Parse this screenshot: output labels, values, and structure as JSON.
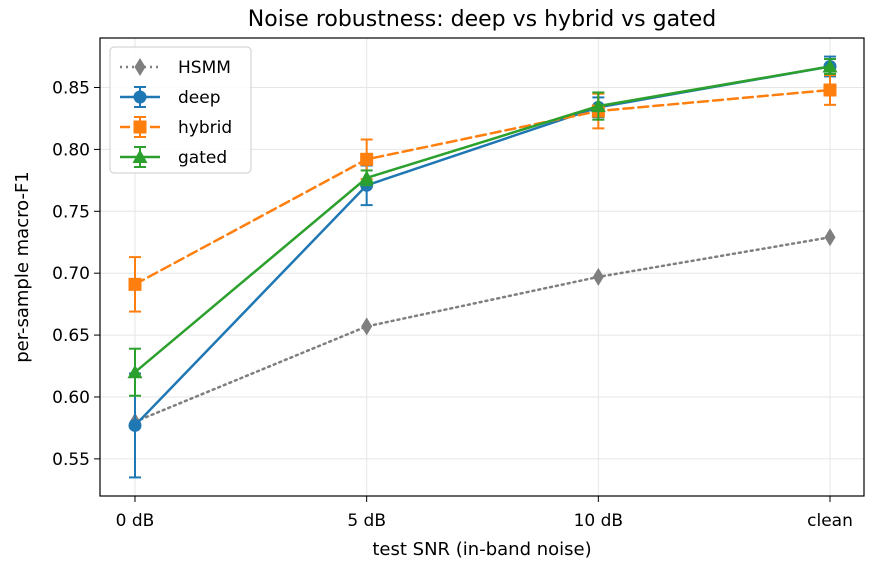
{
  "chart_data": {
    "type": "line",
    "title": "Noise robustness: deep vs hybrid vs gated",
    "xlabel": "test SNR (in-band noise)",
    "ylabel": "per-sample macro-F1",
    "categories": [
      "0 dB",
      "5 dB",
      "10 dB",
      "clean"
    ],
    "ylim": [
      0.52,
      0.89
    ],
    "yticks": [
      "0.55",
      "0.60",
      "0.65",
      "0.70",
      "0.75",
      "0.80",
      "0.85"
    ],
    "grid": true,
    "legend_position": "top-left",
    "series": [
      {
        "name": "HSMM",
        "values": [
          0.58,
          0.657,
          0.697,
          0.729
        ],
        "errors": null,
        "color": "#7f7f7f",
        "linestyle": "dotted",
        "marker": "diamond"
      },
      {
        "name": "deep",
        "values": [
          0.577,
          0.771,
          0.834,
          0.867
        ],
        "errors": [
          0.042,
          0.016,
          0.008,
          0.008
        ],
        "color": "#1f77b4",
        "linestyle": "solid",
        "marker": "circle"
      },
      {
        "name": "hybrid",
        "values": [
          0.691,
          0.792,
          0.831,
          0.848
        ],
        "errors": [
          0.022,
          0.016,
          0.014,
          0.012
        ],
        "color": "#ff7f0e",
        "linestyle": "dashed",
        "marker": "square"
      },
      {
        "name": "gated",
        "values": [
          0.62,
          0.777,
          0.835,
          0.867
        ],
        "errors": [
          0.019,
          0.006,
          0.011,
          0.006
        ],
        "color": "#2ca02c",
        "linestyle": "solid",
        "marker": "triangle"
      }
    ]
  }
}
